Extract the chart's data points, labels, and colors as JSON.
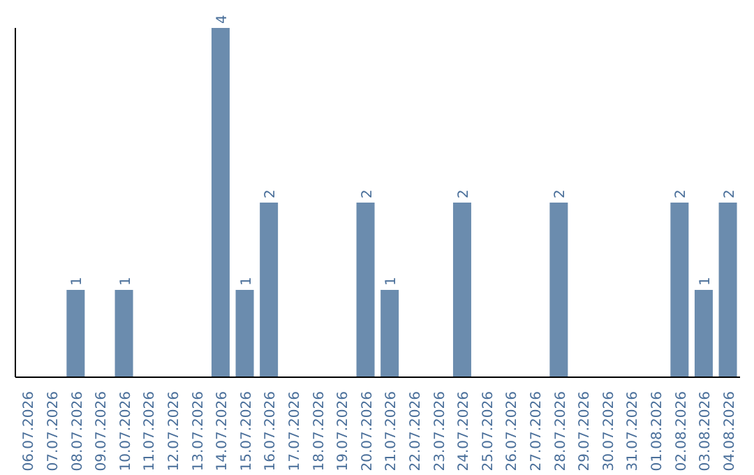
{
  "chart_data": {
    "type": "bar",
    "categories": [
      "06.07.2026",
      "07.07.2026",
      "08.07.2026",
      "09.07.2026",
      "10.07.2026",
      "11.07.2026",
      "12.07.2026",
      "13.07.2026",
      "14.07.2026",
      "15.07.2026",
      "16.07.2026",
      "17.07.2026",
      "18.07.2026",
      "19.07.2026",
      "20.07.2026",
      "21.07.2026",
      "22.07.2026",
      "23.07.2026",
      "24.07.2026",
      "25.07.2026",
      "26.07.2026",
      "27.07.2026",
      "28.07.2026",
      "29.07.2026",
      "30.07.2026",
      "31.07.2026",
      "01.08.2026",
      "02.08.2026",
      "03.08.2026",
      "04.08.2026"
    ],
    "values": [
      0,
      0,
      1,
      0,
      1,
      0,
      0,
      0,
      4,
      1,
      2,
      0,
      0,
      0,
      2,
      1,
      0,
      0,
      2,
      0,
      0,
      0,
      2,
      0,
      0,
      0,
      0,
      2,
      1,
      2
    ],
    "value_labels": [
      null,
      null,
      "1",
      null,
      "1",
      null,
      null,
      null,
      "4",
      "1",
      "2",
      null,
      null,
      null,
      "2",
      "1",
      null,
      null,
      "2",
      null,
      null,
      null,
      "2",
      null,
      null,
      null,
      null,
      "2",
      "1",
      "2"
    ],
    "color": "#6b8cae",
    "tick_labels": "x",
    "grid": false
  }
}
